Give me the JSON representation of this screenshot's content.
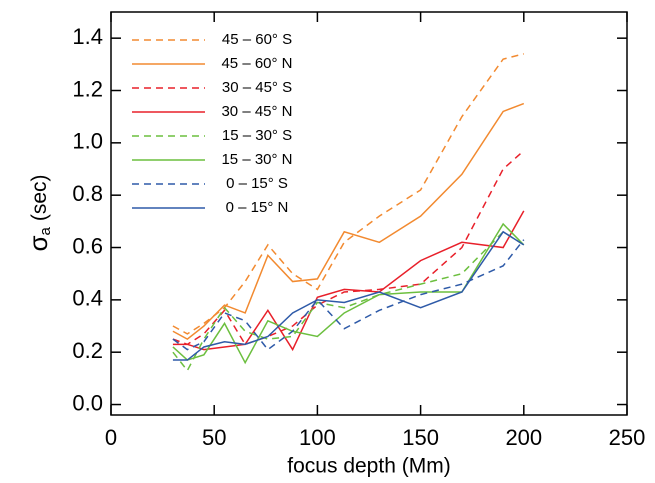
{
  "chart_data": {
    "type": "line",
    "x_label": "focus depth (Mm)",
    "y_label": {
      "symbol": "σ",
      "subscript": "a",
      "unit": "(sec)"
    },
    "x": [
      30,
      37,
      45,
      55,
      65,
      76,
      88,
      100,
      113,
      130,
      150,
      170,
      190,
      200
    ],
    "series": [
      {
        "name": "45 – 60° S",
        "color": "#f28a30",
        "style": "dashed",
        "values": [
          0.3,
          0.27,
          0.31,
          0.37,
          0.47,
          0.61,
          0.5,
          0.44,
          0.62,
          0.72,
          0.82,
          1.1,
          1.32,
          1.34
        ]
      },
      {
        "name": "45 – 60° N",
        "color": "#f28a30",
        "style": "solid",
        "values": [
          0.28,
          0.25,
          0.3,
          0.38,
          0.35,
          0.57,
          0.47,
          0.48,
          0.66,
          0.62,
          0.72,
          0.88,
          1.12,
          1.15
        ]
      },
      {
        "name": "30 – 45° S",
        "color": "#e8202a",
        "style": "dashed",
        "values": [
          0.25,
          0.23,
          0.27,
          0.36,
          0.23,
          0.26,
          0.3,
          0.38,
          0.43,
          0.44,
          0.46,
          0.6,
          0.9,
          0.97
        ]
      },
      {
        "name": "30 – 45° N",
        "color": "#e8202a",
        "style": "solid",
        "values": [
          0.23,
          0.23,
          0.21,
          0.22,
          0.23,
          0.36,
          0.21,
          0.41,
          0.44,
          0.43,
          0.55,
          0.62,
          0.6,
          0.74
        ]
      },
      {
        "name": "15 – 30° S",
        "color": "#6cbf3f",
        "style": "dashed",
        "values": [
          0.2,
          0.13,
          0.25,
          0.37,
          0.28,
          0.25,
          0.26,
          0.39,
          0.37,
          0.42,
          0.46,
          0.5,
          0.66,
          0.61
        ]
      },
      {
        "name": "15 – 30° N",
        "color": "#6cbf3f",
        "style": "solid",
        "values": [
          0.22,
          0.17,
          0.19,
          0.31,
          0.16,
          0.32,
          0.28,
          0.26,
          0.35,
          0.42,
          0.43,
          0.43,
          0.69,
          0.61
        ]
      },
      {
        "name": "0 – 15° S",
        "color": "#2e5aa8",
        "style": "dashed",
        "values": [
          0.25,
          0.21,
          0.24,
          0.35,
          0.32,
          0.21,
          0.28,
          0.4,
          0.29,
          0.36,
          0.42,
          0.46,
          0.53,
          0.63
        ]
      },
      {
        "name": "0 – 15° N",
        "color": "#2e5aa8",
        "style": "solid",
        "values": [
          0.17,
          0.17,
          0.22,
          0.24,
          0.23,
          0.26,
          0.35,
          0.4,
          0.39,
          0.43,
          0.37,
          0.43,
          0.66,
          0.61
        ]
      }
    ],
    "xlim": [
      0,
      250
    ],
    "xticks": [
      0,
      50,
      100,
      150,
      200,
      250
    ],
    "ylim": [
      -0.04,
      1.5
    ],
    "yticks": [
      {
        "value": 0,
        "label": "0.0"
      },
      0.2,
      0.4,
      0.6,
      0.8,
      {
        "value": 1,
        "label": "1.0"
      },
      1.2,
      1.4
    ],
    "legend": "upper left"
  }
}
